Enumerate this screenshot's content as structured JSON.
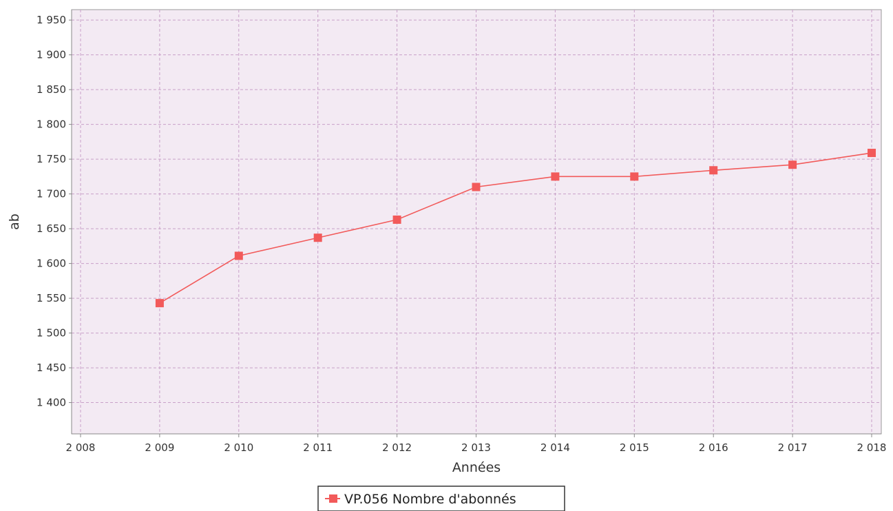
{
  "chart_data": {
    "type": "line",
    "title": "",
    "xlabel": "Années",
    "ylabel": "ab",
    "xlim": [
      2008,
      2018
    ],
    "ylim": [
      1355,
      1965
    ],
    "x_ticks": [
      2008,
      2009,
      2010,
      2011,
      2012,
      2013,
      2014,
      2015,
      2016,
      2017,
      2018
    ],
    "x_tick_labels": [
      "2 008",
      "2 009",
      "2 010",
      "2 011",
      "2 012",
      "2 013",
      "2 014",
      "2 015",
      "2 016",
      "2 017",
      "2 018"
    ],
    "y_ticks": [
      1400,
      1450,
      1500,
      1550,
      1600,
      1650,
      1700,
      1750,
      1800,
      1850,
      1900,
      1950
    ],
    "y_tick_labels": [
      "1 400",
      "1 450",
      "1 500",
      "1 550",
      "1 600",
      "1 650",
      "1 700",
      "1 750",
      "1 800",
      "1 850",
      "1 900",
      "1 950"
    ],
    "grid": true,
    "legend_position": "bottom-center",
    "colors": {
      "plot_background": "#f3eaf3",
      "grid": "#c8a0c8",
      "series": "#f25a5a",
      "axis": "#888888"
    },
    "series": [
      {
        "name": "VP.056 Nombre d'abonnés",
        "marker": "square",
        "x": [
          2009,
          2010,
          2011,
          2012,
          2013,
          2014,
          2015,
          2016,
          2017,
          2018
        ],
        "y": [
          1543,
          1611,
          1637,
          1663,
          1710,
          1725,
          1725,
          1734,
          1742,
          1759
        ]
      }
    ]
  }
}
